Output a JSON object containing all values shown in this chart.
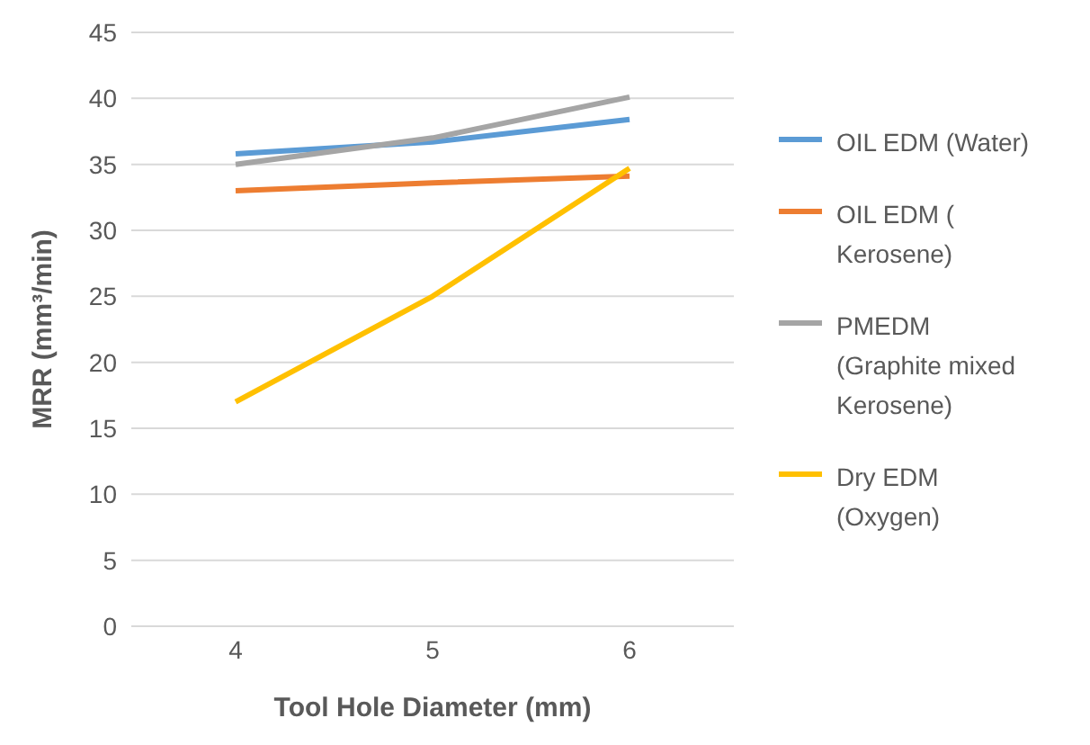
{
  "chart_data": {
    "type": "line",
    "xlabel": "Tool Hole Diameter (mm)",
    "ylabel": "MRR (mm³/min)",
    "categories": [
      "4",
      "5",
      "6"
    ],
    "series": [
      {
        "name": "OIL EDM (Water)",
        "color": "#5b9bd5",
        "values": [
          35.8,
          36.7,
          38.4
        ]
      },
      {
        "name": "OIL EDM ( Kerosene)",
        "color": "#ed7d31",
        "values": [
          33,
          33.6,
          34.1
        ]
      },
      {
        "name": "PMEDM (Graphite mixed Kerosene)",
        "color": "#a5a5a5",
        "values": [
          35,
          37,
          40.1
        ]
      },
      {
        "name": "Dry EDM (Oxygen)",
        "color": "#ffc000",
        "values": [
          17,
          25,
          34.7
        ]
      }
    ],
    "ylim": [
      0,
      45
    ],
    "yticks": [
      0,
      5,
      10,
      15,
      20,
      25,
      30,
      35,
      40,
      45
    ],
    "grid": "y",
    "legend": "right",
    "marker": "none",
    "line_style": "solid"
  }
}
